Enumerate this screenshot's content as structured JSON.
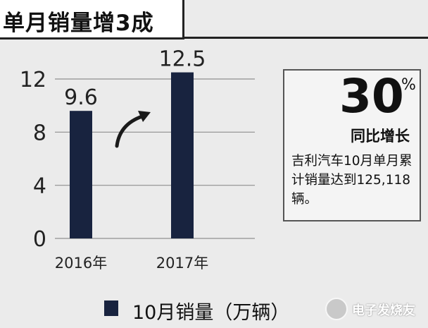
{
  "title": "单月销量增3成",
  "stat": {
    "value": "30",
    "unit": "%",
    "label": "同比增长",
    "description": "吉利汽车10月单月累计销量达到125,118辆。"
  },
  "legend": {
    "label": "10月销量（万辆）"
  },
  "watermark": {
    "text": "电子发烧友"
  },
  "colors": {
    "bar": "#18233f",
    "grid": "#8f8f8f",
    "background": "#ebebeb"
  },
  "chart_data": {
    "type": "bar",
    "categories": [
      "2016年",
      "2017年"
    ],
    "series": [
      {
        "name": "10月销量（万辆）",
        "values": [
          9.6,
          12.5
        ]
      }
    ],
    "data_labels": [
      "9.6",
      "12.5"
    ],
    "ylim": [
      0,
      12
    ],
    "yticks": [
      0,
      4,
      8,
      12
    ],
    "grid": true,
    "annotation": "arrow indicating growth from 2016 to 2017"
  }
}
